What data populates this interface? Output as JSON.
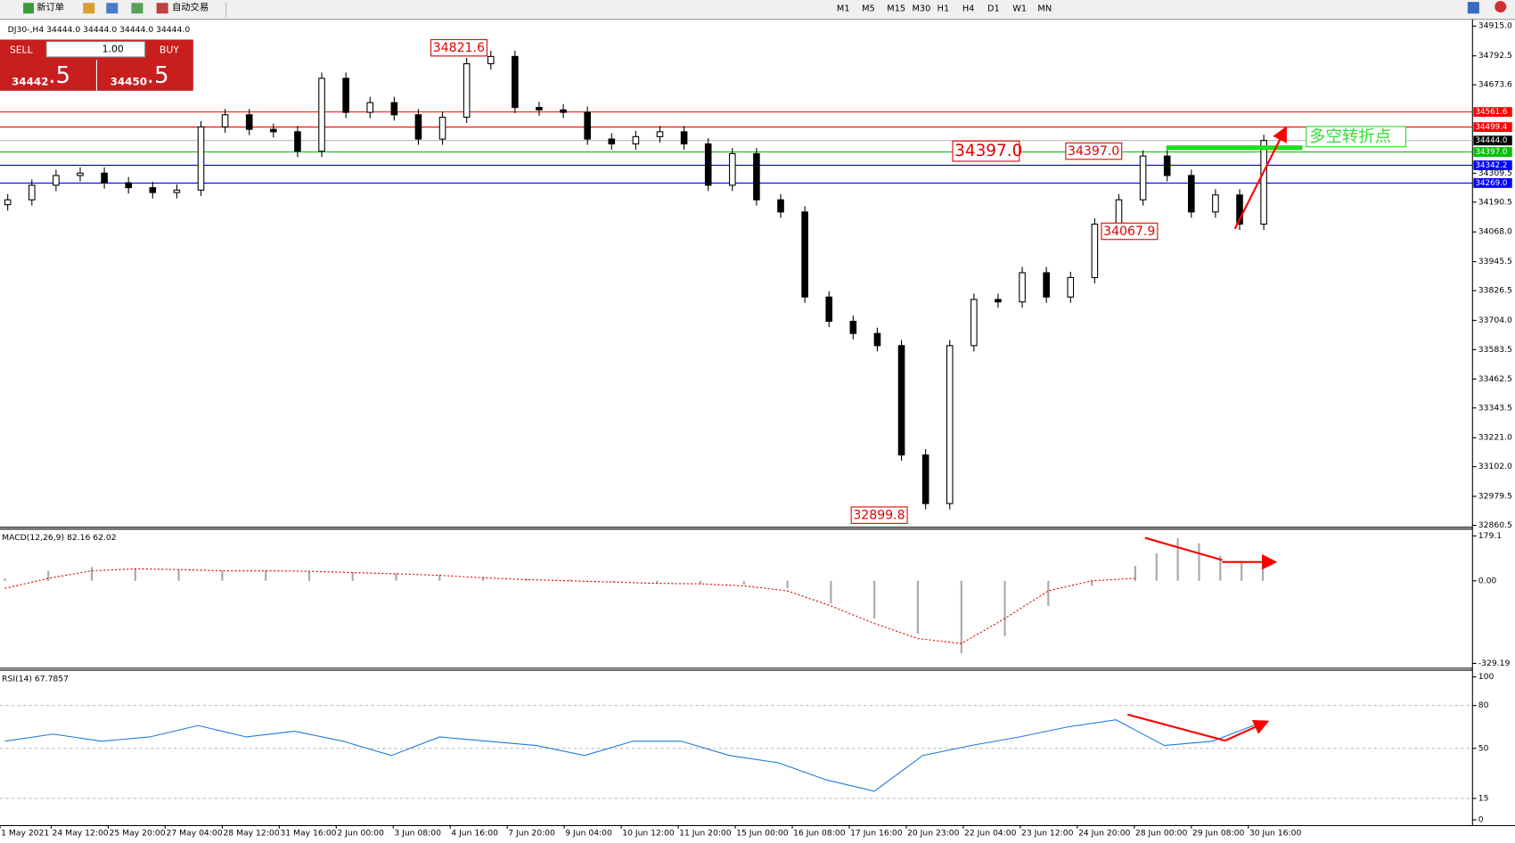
{
  "toolbar": {
    "new_order": "新订单",
    "auto_trade": "自动交易",
    "periods": [
      "M1",
      "M5",
      "M15",
      "M30",
      "H1",
      "H4",
      "D1",
      "W1",
      "MN"
    ]
  },
  "trade_panel": {
    "sell": "SELL",
    "buy": "BUY",
    "lots": "1.00",
    "sell_big": "34442",
    "sell_small": ".5",
    "buy_big": "34450",
    "buy_small": ".5"
  },
  "chart": {
    "header": "DJ30-,H4  34444.0 34444.0 34444.0 34444.0",
    "price_ticks": [
      {
        "value": 34915.0,
        "label": "34915.0"
      },
      {
        "value": 34792.5,
        "label": "34792.5"
      },
      {
        "value": 34673.6,
        "label": "34673.6"
      },
      {
        "value": 34309.5,
        "label": "34309.5"
      },
      {
        "value": 34190.5,
        "label": "34190.5"
      },
      {
        "value": 34068.0,
        "label": "34068.0"
      },
      {
        "value": 33945.5,
        "label": "33945.5"
      },
      {
        "value": 33826.5,
        "label": "33826.5"
      },
      {
        "value": 33704.0,
        "label": "33704.0"
      },
      {
        "value": 33583.5,
        "label": "33583.5"
      },
      {
        "value": 33462.5,
        "label": "33462.5"
      },
      {
        "value": 33343.5,
        "label": "33343.5"
      },
      {
        "value": 33221.0,
        "label": "33221.0"
      },
      {
        "value": 33102.0,
        "label": "33102.0"
      },
      {
        "value": 32979.5,
        "label": "32979.5"
      },
      {
        "value": 32860.5,
        "label": "32860.5"
      }
    ],
    "levels": [
      {
        "value": 34561.6,
        "label": "34561.6",
        "color": "#ff0000"
      },
      {
        "value": 34499.4,
        "label": "34499.4",
        "color": "#ff0000"
      },
      {
        "value": 34444.0,
        "label": "34444.0",
        "color": "#000000"
      },
      {
        "value": 34397.0,
        "label": "34397.0",
        "color": "#00c000"
      },
      {
        "value": 34342.2,
        "label": "34342.2",
        "color": "#0000ff"
      },
      {
        "value": 34269.0,
        "label": "34269.0",
        "color": "#0000ff"
      }
    ],
    "closes": [
      34200,
      34260,
      34300,
      34310,
      34270,
      34250,
      34230,
      34240,
      34500,
      34550,
      34490,
      34480,
      34400,
      34700,
      34560,
      34600,
      34550,
      34450,
      34540,
      34760,
      34790,
      34580,
      34570,
      34560,
      34450,
      34430,
      34460,
      34480,
      34430,
      34260,
      34390,
      34200,
      34150,
      33800,
      33700,
      33650,
      33600,
      33150,
      32950,
      33600,
      33790,
      33780,
      33900,
      33800,
      33880,
      34100,
      34200,
      34380,
      34300,
      34150,
      34220,
      34100,
      34444
    ],
    "annotations": [
      "34821.6",
      "34397.0",
      "34397.0",
      "34067.9",
      "32899.8"
    ],
    "turning_point": "多空转折点",
    "time_labels": [
      "1 May 2021",
      "24 May 12:00",
      "25 May 20:00",
      "27 May 04:00",
      "28 May 12:00",
      "31 May 16:00",
      "2 Jun 00:00",
      "3 Jun 08:00",
      "4 Jun 16:00",
      "7 Jun 20:00",
      "9 Jun 04:00",
      "10 Jun 12:00",
      "11 Jun 20:00",
      "15 Jun 00:00",
      "16 Jun 08:00",
      "17 Jun 16:00",
      "20 Jun 23:00",
      "22 Jun 04:00",
      "23 Jun 12:00",
      "24 Jun 20:00",
      "28 Jun 00:00",
      "29 Jun 08:00",
      "30 Jun 16:00"
    ]
  },
  "macd": {
    "label": "MACD(12,26,9) 82.16 62.02",
    "axis": [
      {
        "value": 179.1,
        "label": "179.1"
      },
      {
        "value": 0,
        "label": "0.00"
      },
      {
        "value": -329.19,
        "label": "-329.19"
      }
    ],
    "histogram": [
      10,
      40,
      55,
      50,
      45,
      40,
      42,
      40,
      35,
      30,
      25,
      15,
      8,
      5,
      -5,
      -10,
      -12,
      -15,
      -30,
      -90,
      -150,
      -210,
      -290,
      -220,
      -100,
      -20,
      20
    ],
    "signal": [
      -30,
      10,
      40,
      48,
      45,
      40,
      40,
      38,
      33,
      28,
      22,
      12,
      5,
      0,
      -5,
      -10,
      -12,
      -20,
      -40,
      -100,
      -170,
      -230,
      -250,
      -150,
      -40,
      0,
      10
    ]
  },
  "macd_tail": [
    60,
    110,
    170,
    150,
    100,
    70,
    60
  ],
  "rsi": {
    "label": "RSI(14) 67.7857",
    "axis": [
      100,
      80,
      50,
      15,
      0
    ],
    "values": [
      55,
      60,
      55,
      58,
      66,
      58,
      62,
      55,
      45,
      58,
      55,
      52,
      45,
      55,
      55,
      45,
      40,
      28,
      20,
      45,
      52,
      58,
      65,
      70,
      52,
      55,
      68
    ]
  }
}
